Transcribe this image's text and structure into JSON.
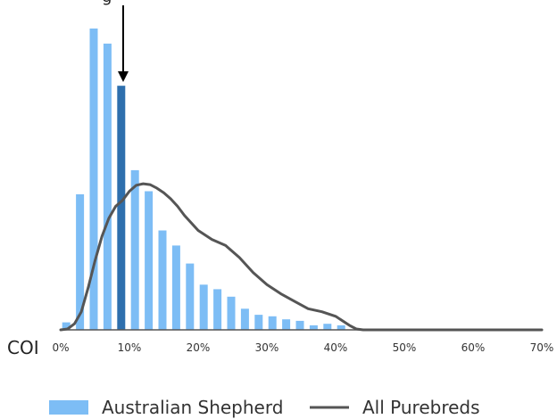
{
  "chart_data": {
    "type": "bar",
    "xlabel": "COI",
    "x_ticks": [
      "0%",
      "10%",
      "20%",
      "30%",
      "40%",
      "50%",
      "60%",
      "70%"
    ],
    "xlim": [
      0,
      70
    ],
    "ylim": [
      0,
      100
    ],
    "bars": {
      "name": "Australian Shepherd",
      "color": "#7dbdf5",
      "highlight_color": "#2e6fad",
      "highlight_index": 4,
      "x": [
        0.8,
        2.8,
        4.8,
        6.8,
        8.8,
        10.8,
        12.8,
        14.8,
        16.8,
        18.8,
        20.8,
        22.8,
        24.8,
        26.8,
        28.8,
        30.8,
        32.8,
        34.8,
        36.8,
        38.8,
        40.8
      ],
      "values": [
        2.5,
        45,
        100,
        95,
        81,
        53,
        46,
        33,
        28,
        22,
        15,
        13.5,
        11,
        7,
        5,
        4.5,
        3.5,
        3,
        1.5,
        2,
        1.5
      ]
    },
    "line": {
      "name": "All Purebreds",
      "color": "#555555",
      "x": [
        0,
        1,
        2,
        3,
        4,
        5,
        6,
        7,
        8,
        9,
        10,
        11,
        12,
        13,
        14,
        15,
        16,
        17,
        18,
        20,
        22,
        24,
        26,
        28,
        30,
        32,
        34,
        36,
        38,
        40,
        42,
        43,
        44,
        45,
        46,
        47,
        48,
        49,
        50,
        55,
        60,
        65,
        70
      ],
      "values": [
        0,
        0.3,
        2,
        6,
        14,
        23,
        31,
        37,
        41,
        43,
        46,
        48,
        48.5,
        48.2,
        47,
        45.5,
        43.5,
        41,
        38,
        33,
        30,
        28,
        24,
        19,
        15,
        12,
        9.5,
        7,
        6,
        4.5,
        1.5,
        0.3,
        0,
        0,
        0,
        0,
        0,
        0,
        0,
        0,
        0,
        0,
        0
      ]
    },
    "legend": {
      "position": "bottom-center",
      "bar_label": "Australian Shepherd",
      "line_label": "All Purebreds"
    }
  }
}
